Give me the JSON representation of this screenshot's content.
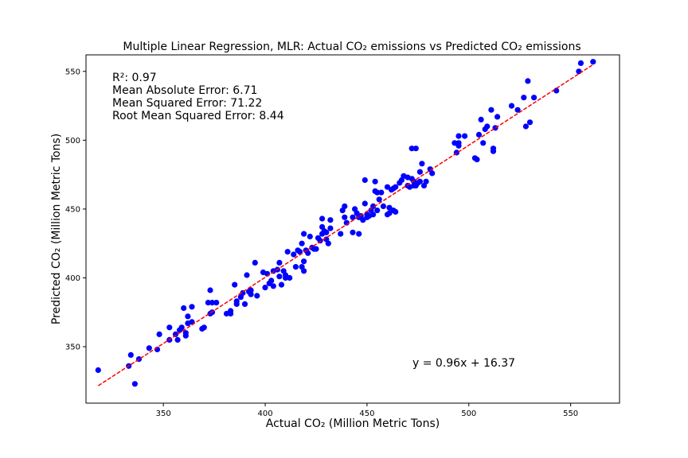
{
  "chart_data": {
    "type": "scatter",
    "title": "Multiple Linear Regression, MLR: Actual CO₂ emissions vs Predicted CO₂ emissions",
    "xlabel": "Actual CO₂ (Million Metric Tons)",
    "ylabel": "Predicted CO₂ (Million Metric Tons)",
    "xlim": [
      312,
      574
    ],
    "ylim": [
      309,
      562
    ],
    "xticks": [
      350,
      400,
      450,
      500,
      550
    ],
    "yticks": [
      350,
      400,
      450,
      500,
      550
    ],
    "grid": false,
    "point_color": "#0000ff",
    "line_color": "#ff0000",
    "stats": [
      "R²: 0.97",
      "Mean Absolute Error: 6.71",
      "Mean Squared Error: 71.22",
      "Root Mean Squared Error: 8.44"
    ],
    "equation": "y = 0.96x + 16.37",
    "fit_line": {
      "slope": 0.96,
      "intercept": 16.37,
      "x_range": [
        318,
        561
      ]
    },
    "points": [
      [
        318,
        333
      ],
      [
        333,
        336
      ],
      [
        334,
        344
      ],
      [
        336,
        323
      ],
      [
        338,
        341
      ],
      [
        343,
        349
      ],
      [
        347,
        348
      ],
      [
        348,
        359
      ],
      [
        353,
        355
      ],
      [
        353,
        364
      ],
      [
        356,
        359
      ],
      [
        357,
        355
      ],
      [
        358,
        362
      ],
      [
        359,
        364
      ],
      [
        360,
        378
      ],
      [
        361,
        358
      ],
      [
        361,
        360
      ],
      [
        362,
        372
      ],
      [
        362,
        367
      ],
      [
        364,
        379
      ],
      [
        364,
        368
      ],
      [
        369,
        363
      ],
      [
        370,
        364
      ],
      [
        372,
        382
      ],
      [
        373,
        391
      ],
      [
        373,
        374
      ],
      [
        374,
        375
      ],
      [
        374,
        382
      ],
      [
        376,
        382
      ],
      [
        381,
        374
      ],
      [
        383,
        374
      ],
      [
        383,
        376
      ],
      [
        385,
        395
      ],
      [
        386,
        381
      ],
      [
        386,
        383
      ],
      [
        388,
        386
      ],
      [
        389,
        389
      ],
      [
        390,
        381
      ],
      [
        391,
        402
      ],
      [
        392,
        390
      ],
      [
        393,
        391
      ],
      [
        393,
        388
      ],
      [
        395,
        411
      ],
      [
        396,
        387
      ],
      [
        399,
        404
      ],
      [
        400,
        393
      ],
      [
        401,
        403
      ],
      [
        402,
        396
      ],
      [
        403,
        398
      ],
      [
        404,
        394
      ],
      [
        404,
        405
      ],
      [
        406,
        406
      ],
      [
        407,
        411
      ],
      [
        407,
        401
      ],
      [
        408,
        395
      ],
      [
        409,
        405
      ],
      [
        410,
        400
      ],
      [
        410,
        402
      ],
      [
        411,
        419
      ],
      [
        412,
        400
      ],
      [
        414,
        417
      ],
      [
        415,
        408
      ],
      [
        416,
        420
      ],
      [
        417,
        419
      ],
      [
        418,
        425
      ],
      [
        418,
        408
      ],
      [
        419,
        405
      ],
      [
        419,
        432
      ],
      [
        419,
        412
      ],
      [
        420,
        420
      ],
      [
        421,
        418
      ],
      [
        422,
        430
      ],
      [
        423,
        422
      ],
      [
        424,
        421
      ],
      [
        425,
        421
      ],
      [
        426,
        429
      ],
      [
        427,
        427
      ],
      [
        428,
        443
      ],
      [
        428,
        432
      ],
      [
        428,
        437
      ],
      [
        429,
        434
      ],
      [
        430,
        433
      ],
      [
        430,
        428
      ],
      [
        431,
        425
      ],
      [
        432,
        442
      ],
      [
        432,
        436
      ],
      [
        437,
        432
      ],
      [
        438,
        449
      ],
      [
        439,
        444
      ],
      [
        439,
        452
      ],
      [
        440,
        440
      ],
      [
        443,
        433
      ],
      [
        443,
        444
      ],
      [
        444,
        450
      ],
      [
        445,
        447
      ],
      [
        446,
        432
      ],
      [
        446,
        444
      ],
      [
        447,
        445
      ],
      [
        448,
        442
      ],
      [
        449,
        471
      ],
      [
        449,
        454
      ],
      [
        450,
        446
      ],
      [
        450,
        444
      ],
      [
        451,
        445
      ],
      [
        452,
        449
      ],
      [
        453,
        452
      ],
      [
        453,
        446
      ],
      [
        454,
        463
      ],
      [
        454,
        470
      ],
      [
        455,
        462
      ],
      [
        455,
        449
      ],
      [
        456,
        457
      ],
      [
        457,
        462
      ],
      [
        458,
        452
      ],
      [
        460,
        446
      ],
      [
        460,
        466
      ],
      [
        461,
        447
      ],
      [
        461,
        451
      ],
      [
        462,
        464
      ],
      [
        463,
        449
      ],
      [
        463,
        465
      ],
      [
        464,
        448
      ],
      [
        464,
        466
      ],
      [
        466,
        469
      ],
      [
        467,
        471
      ],
      [
        468,
        474
      ],
      [
        470,
        473
      ],
      [
        470,
        467
      ],
      [
        471,
        466
      ],
      [
        472,
        494
      ],
      [
        472,
        472
      ],
      [
        473,
        467
      ],
      [
        473,
        470
      ],
      [
        474,
        494
      ],
      [
        474,
        467
      ],
      [
        475,
        469
      ],
      [
        476,
        477
      ],
      [
        476,
        470
      ],
      [
        477,
        483
      ],
      [
        478,
        467
      ],
      [
        479,
        470
      ],
      [
        481,
        479
      ],
      [
        482,
        476
      ],
      [
        493,
        498
      ],
      [
        494,
        491
      ],
      [
        495,
        496
      ],
      [
        495,
        503
      ],
      [
        495,
        498
      ],
      [
        498,
        503
      ],
      [
        503,
        487
      ],
      [
        504,
        486
      ],
      [
        505,
        504
      ],
      [
        506,
        515
      ],
      [
        507,
        498
      ],
      [
        508,
        508
      ],
      [
        509,
        510
      ],
      [
        511,
        522
      ],
      [
        512,
        494
      ],
      [
        512,
        492
      ],
      [
        513,
        509
      ],
      [
        514,
        517
      ],
      [
        521,
        525
      ],
      [
        524,
        522
      ],
      [
        527,
        531
      ],
      [
        528,
        510
      ],
      [
        529,
        543
      ],
      [
        530,
        513
      ],
      [
        532,
        531
      ],
      [
        543,
        536
      ],
      [
        554,
        550
      ],
      [
        555,
        556
      ],
      [
        561,
        557
      ]
    ]
  }
}
